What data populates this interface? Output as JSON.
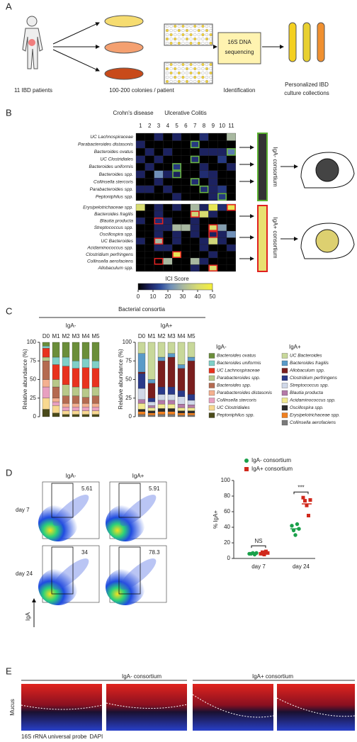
{
  "panels": [
    "A",
    "B",
    "C",
    "D",
    "E"
  ],
  "panel_a": {
    "labels": [
      "11 IBD patients",
      "100-200 colonies / patient",
      "Identification"
    ],
    "box": [
      "16S DNA",
      "sequencing"
    ],
    "collections": [
      "Personalized IBD",
      "culture collections"
    ]
  },
  "panel_b": {
    "groups": [
      "Crohn's disease",
      "Ulcerative Colitis"
    ],
    "columns": [
      1,
      2,
      3,
      4,
      5,
      6,
      7,
      8,
      9,
      10,
      11
    ],
    "top": {
      "rows": [
        "UC Lachnospiraceae",
        "Parabacteroides distasonis",
        "Bacteroides ovatus",
        "UC Clostridiales",
        "Bacteroides uniformis",
        "Bacteroides spp.",
        "Collinsella stercoris",
        "Parabacteroides spp.",
        "Peptoniphilus spp."
      ],
      "values": [
        [
          0,
          0,
          8,
          0,
          8,
          0,
          0,
          10,
          0,
          0,
          30
        ],
        [
          8,
          0,
          0,
          0,
          0,
          0,
          12,
          0,
          0,
          0,
          0
        ],
        [
          0,
          8,
          0,
          8,
          0,
          0,
          0,
          8,
          8,
          8,
          20
        ],
        [
          8,
          0,
          8,
          0,
          0,
          0,
          10,
          0,
          0,
          12,
          0
        ],
        [
          0,
          8,
          0,
          0,
          12,
          0,
          0,
          8,
          0,
          0,
          8
        ],
        [
          8,
          0,
          22,
          8,
          8,
          0,
          0,
          10,
          8,
          0,
          0
        ],
        [
          0,
          0,
          8,
          0,
          0,
          0,
          10,
          0,
          8,
          0,
          0
        ],
        [
          8,
          8,
          0,
          8,
          0,
          0,
          0,
          10,
          8,
          12,
          0
        ],
        [
          0,
          0,
          0,
          0,
          8,
          0,
          0,
          0,
          8,
          12,
          0
        ]
      ],
      "boxes": [
        [
          1,
          6
        ],
        [
          2,
          10
        ],
        [
          3,
          6
        ],
        [
          4,
          4
        ],
        [
          5,
          4
        ],
        [
          6,
          6
        ],
        [
          7,
          7
        ],
        [
          8,
          9
        ]
      ],
      "consortium": "IgA- consortium"
    },
    "bottom": {
      "rows": [
        "Erysipelotrichaceae spp.",
        "Bacteroides fragilis",
        "Blautia producta",
        "Streptococcus spp.",
        "Oscillospira spp.",
        "UC Bacteroides",
        "Acidaminococcus spp.",
        "Clostridium perfringens",
        "Collinsella aerofaciens",
        "Allobaculum spp."
      ],
      "values": [
        [
          40,
          0,
          8,
          0,
          8,
          0,
          30,
          8,
          45,
          10,
          45
        ],
        [
          0,
          0,
          8,
          0,
          0,
          0,
          38,
          40,
          8,
          0,
          0
        ],
        [
          8,
          0,
          10,
          8,
          0,
          0,
          8,
          0,
          0,
          0,
          0
        ],
        [
          0,
          0,
          8,
          8,
          30,
          30,
          8,
          0,
          40,
          25,
          0
        ],
        [
          0,
          0,
          8,
          0,
          8,
          0,
          8,
          0,
          8,
          8,
          22
        ],
        [
          8,
          0,
          30,
          0,
          8,
          0,
          0,
          8,
          38,
          8,
          0
        ],
        [
          0,
          0,
          8,
          8,
          0,
          0,
          0,
          8,
          0,
          0,
          8
        ],
        [
          0,
          0,
          0,
          0,
          45,
          0,
          0,
          0,
          8,
          0,
          0
        ],
        [
          0,
          0,
          0,
          30,
          0,
          0,
          30,
          8,
          0,
          0,
          0
        ],
        [
          0,
          0,
          0,
          0,
          0,
          0,
          8,
          0,
          40,
          0,
          0
        ]
      ],
      "boxes": [
        [
          0,
          10
        ],
        [
          1,
          6
        ],
        [
          2,
          2
        ],
        [
          3,
          8
        ],
        [
          4,
          8
        ],
        [
          5,
          2
        ],
        [
          7,
          4
        ],
        [
          8,
          2
        ],
        [
          9,
          8
        ]
      ],
      "consortium": "IgA+ consortium"
    },
    "colorbar": {
      "title": "ICI Score",
      "ticks": [
        0,
        10,
        20,
        30,
        40,
        50
      ],
      "lim": [
        0,
        50
      ]
    }
  },
  "panel_c": {
    "title": "Bacterial consortia",
    "ylabel": "Relative abundance (%)",
    "ylim": [
      0,
      100
    ],
    "yticks": [
      0,
      25,
      50,
      75,
      100
    ],
    "bars": [
      "D0",
      "M1",
      "M2",
      "M3",
      "M4",
      "M5"
    ],
    "groups": [
      {
        "name": "IgA-",
        "series": [
          {
            "name": "Bacteroides ovatus",
            "color": "#6b8e3a",
            "values": [
              5,
              20,
              20,
              25,
              22,
              25
            ]
          },
          {
            "name": "Bacteroides uniformis",
            "color": "#7fd0c8",
            "values": [
              3,
              10,
              12,
              10,
              12,
              10
            ]
          },
          {
            "name": "UC Lachnospiraceae",
            "color": "#e8321e",
            "values": [
              12,
              20,
              25,
              25,
              28,
              25
            ]
          },
          {
            "name": "Parabacteroides spp.",
            "color": "#b8c98a",
            "values": [
              5,
              10,
              15,
              12,
              12,
              12
            ]
          },
          {
            "name": "Bacteroides spp.",
            "color": "#b46a50",
            "values": [
              25,
              15,
              10,
              10,
              8,
              10
            ]
          },
          {
            "name": "Parabacteroides distasonis",
            "color": "#f4b090",
            "values": [
              10,
              5,
              5,
              5,
              5,
              5
            ]
          },
          {
            "name": "Collinsella stercoris",
            "color": "#e8a0c0",
            "values": [
              15,
              5,
              5,
              5,
              5,
              5
            ]
          },
          {
            "name": "UC Clostridiales",
            "color": "#f8d890",
            "values": [
              15,
              10,
              5,
              5,
              5,
              5
            ]
          },
          {
            "name": "Peptoniphilus spp.",
            "color": "#4a4a1a",
            "values": [
              10,
              5,
              3,
              3,
              3,
              3
            ]
          }
        ]
      },
      {
        "name": "IgA+",
        "series": [
          {
            "name": "UC Bacteroides",
            "color": "#c8d89a",
            "values": [
              15,
              50,
              20,
              15,
              30,
              20
            ]
          },
          {
            "name": "Bacteroides fragilis",
            "color": "#5a9ac8",
            "values": [
              25,
              5,
              5,
              5,
              5,
              5
            ]
          },
          {
            "name": "Allobaculum spp.",
            "color": "#7a1e1e",
            "values": [
              2,
              20,
              35,
              40,
              30,
              45
            ]
          },
          {
            "name": "Clostridium perfringens",
            "color": "#2a3a8a",
            "values": [
              20,
              5,
              10,
              10,
              8,
              8
            ]
          },
          {
            "name": "Streptococcus spp.",
            "color": "#d0d8e8",
            "values": [
              15,
              5,
              8,
              8,
              10,
              6
            ]
          },
          {
            "name": "Blautia producta",
            "color": "#b47aa8",
            "values": [
              5,
              3,
              5,
              5,
              5,
              4
            ]
          },
          {
            "name": "Acidaminococcus spp.",
            "color": "#f0e890",
            "values": [
              8,
              4,
              6,
              6,
              4,
              4
            ]
          },
          {
            "name": "Oscillospira spp.",
            "color": "#2a2a2a",
            "values": [
              3,
              3,
              4,
              4,
              3,
              3
            ]
          },
          {
            "name": "Erysipelotrichaceae spp.",
            "color": "#f08020",
            "values": [
              4,
              3,
              4,
              4,
              3,
              3
            ]
          },
          {
            "name": "Collinsella aerofaciens",
            "color": "#7a7a7a",
            "values": [
              3,
              2,
              3,
              3,
              2,
              2
            ]
          }
        ]
      }
    ]
  },
  "panel_d": {
    "columns": [
      "IgA-",
      "IgA+"
    ],
    "rows": [
      "day 7",
      "day 24"
    ],
    "gates": [
      [
        5.61,
        5.91
      ],
      [
        34,
        78.3
      ]
    ],
    "axis_label": "IgA",
    "plot": {
      "ylabel": "% IgA+",
      "ylim": [
        0,
        100
      ],
      "yticks": [
        0,
        20,
        40,
        60,
        80,
        100
      ],
      "categories": [
        "day 7",
        "day 24"
      ],
      "series": [
        {
          "name": "IgA- consortium",
          "color": "#1aa04a",
          "values": [
            [
              6,
              6,
              7,
              5,
              7
            ],
            [
              42,
              36,
              30,
              44,
              38
            ]
          ],
          "means": [
            6.2,
            38
          ]
        },
        {
          "name": "IgA+ consortium",
          "color": "#d0281c",
          "values": [
            [
              6,
              8,
              5,
              9,
              7
            ],
            [
              78,
              74,
              68,
              55,
              75
            ]
          ],
          "means": [
            7,
            70
          ]
        }
      ],
      "annotations": [
        "NS",
        "***"
      ]
    }
  },
  "panel_e": {
    "headers": [
      "IgA- consortium",
      "IgA+ consortium"
    ],
    "side": "Mucus",
    "legend": [
      "16S rRNA universal probe",
      "DAPI"
    ]
  }
}
